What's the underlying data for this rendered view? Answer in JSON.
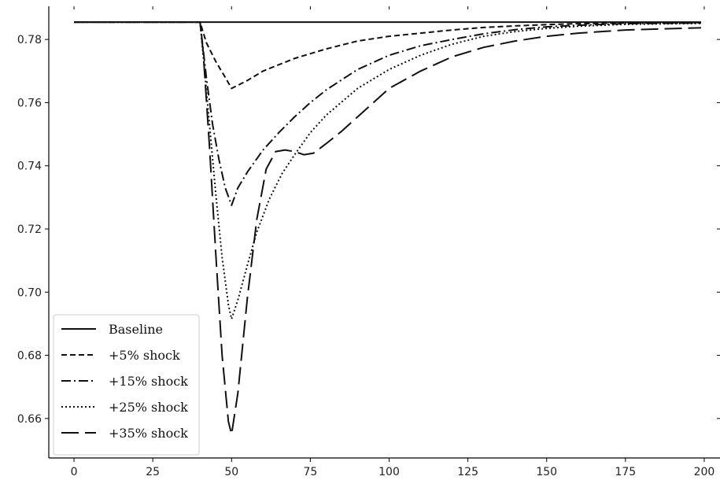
{
  "chart_data": {
    "type": "line",
    "title": "",
    "xlabel": "",
    "ylabel": "",
    "xlim": [
      -8,
      205
    ],
    "ylim": [
      0.6475,
      0.7905
    ],
    "xticks": [
      0,
      25,
      50,
      75,
      100,
      125,
      150,
      175,
      200
    ],
    "xtick_labels": [
      "0",
      "25",
      "50",
      "75",
      "100",
      "125",
      "150",
      "175",
      "200"
    ],
    "yticks": [
      0.66,
      0.68,
      0.7,
      0.72,
      0.74,
      0.76,
      0.78
    ],
    "ytick_labels": [
      "0.66",
      "0.68",
      "0.70",
      "0.72",
      "0.74",
      "0.76",
      "0.78"
    ],
    "grid": false,
    "legend_position": "lower-left",
    "line_color": "#111111",
    "series": [
      {
        "name": "Baseline",
        "style": "solid",
        "x": [
          0,
          50,
          100,
          150,
          199
        ],
        "y": [
          0.7855,
          0.7855,
          0.7855,
          0.7855,
          0.7855
        ]
      },
      {
        "name": "+5% shock",
        "style": "dashed",
        "x": [
          0,
          40,
          42,
          45,
          48,
          50,
          55,
          60,
          70,
          80,
          90,
          100,
          110,
          120,
          130,
          140,
          150,
          160,
          175,
          199
        ],
        "y": [
          0.7855,
          0.7855,
          0.779,
          0.773,
          0.768,
          0.7645,
          0.767,
          0.77,
          0.774,
          0.777,
          0.7795,
          0.781,
          0.782,
          0.783,
          0.7838,
          0.7843,
          0.7847,
          0.785,
          0.7852,
          0.7853
        ]
      },
      {
        "name": "+15% shock",
        "style": "dashdot",
        "x": [
          0,
          40,
          42,
          44,
          46,
          48,
          50,
          52,
          55,
          60,
          65,
          70,
          75,
          80,
          90,
          100,
          110,
          120,
          130,
          140,
          150,
          160,
          175,
          199
        ],
        "y": [
          0.7855,
          0.7855,
          0.768,
          0.753,
          0.742,
          0.733,
          0.7275,
          0.733,
          0.738,
          0.745,
          0.7505,
          0.7555,
          0.76,
          0.764,
          0.7705,
          0.775,
          0.778,
          0.78,
          0.7818,
          0.7831,
          0.784,
          0.7845,
          0.785,
          0.7852
        ]
      },
      {
        "name": "+25% shock",
        "style": "dotted",
        "x": [
          0,
          40,
          41,
          43,
          45,
          47,
          49,
          50,
          52,
          55,
          58,
          62,
          66,
          70,
          75,
          80,
          90,
          100,
          110,
          120,
          130,
          140,
          150,
          160,
          175,
          199
        ],
        "y": [
          0.7855,
          0.7855,
          0.775,
          0.753,
          0.731,
          0.711,
          0.696,
          0.6915,
          0.6975,
          0.7085,
          0.719,
          0.7295,
          0.7375,
          0.7435,
          0.7505,
          0.756,
          0.7645,
          0.7705,
          0.775,
          0.7785,
          0.781,
          0.7825,
          0.7835,
          0.7842,
          0.7848,
          0.7851
        ]
      },
      {
        "name": "+35% shock",
        "style": "longdash",
        "x": [
          0,
          40,
          41,
          43,
          45,
          47,
          49,
          50,
          52,
          55,
          58,
          61,
          64,
          67,
          70,
          73,
          76,
          80,
          85,
          90,
          100,
          110,
          120,
          130,
          140,
          150,
          160,
          175,
          199
        ],
        "y": [
          0.7855,
          0.7855,
          0.776,
          0.746,
          0.712,
          0.68,
          0.659,
          0.655,
          0.668,
          0.698,
          0.723,
          0.739,
          0.7445,
          0.745,
          0.7445,
          0.7435,
          0.744,
          0.747,
          0.751,
          0.7555,
          0.7645,
          0.77,
          0.7745,
          0.7775,
          0.7795,
          0.781,
          0.782,
          0.783,
          0.7837
        ]
      }
    ]
  }
}
